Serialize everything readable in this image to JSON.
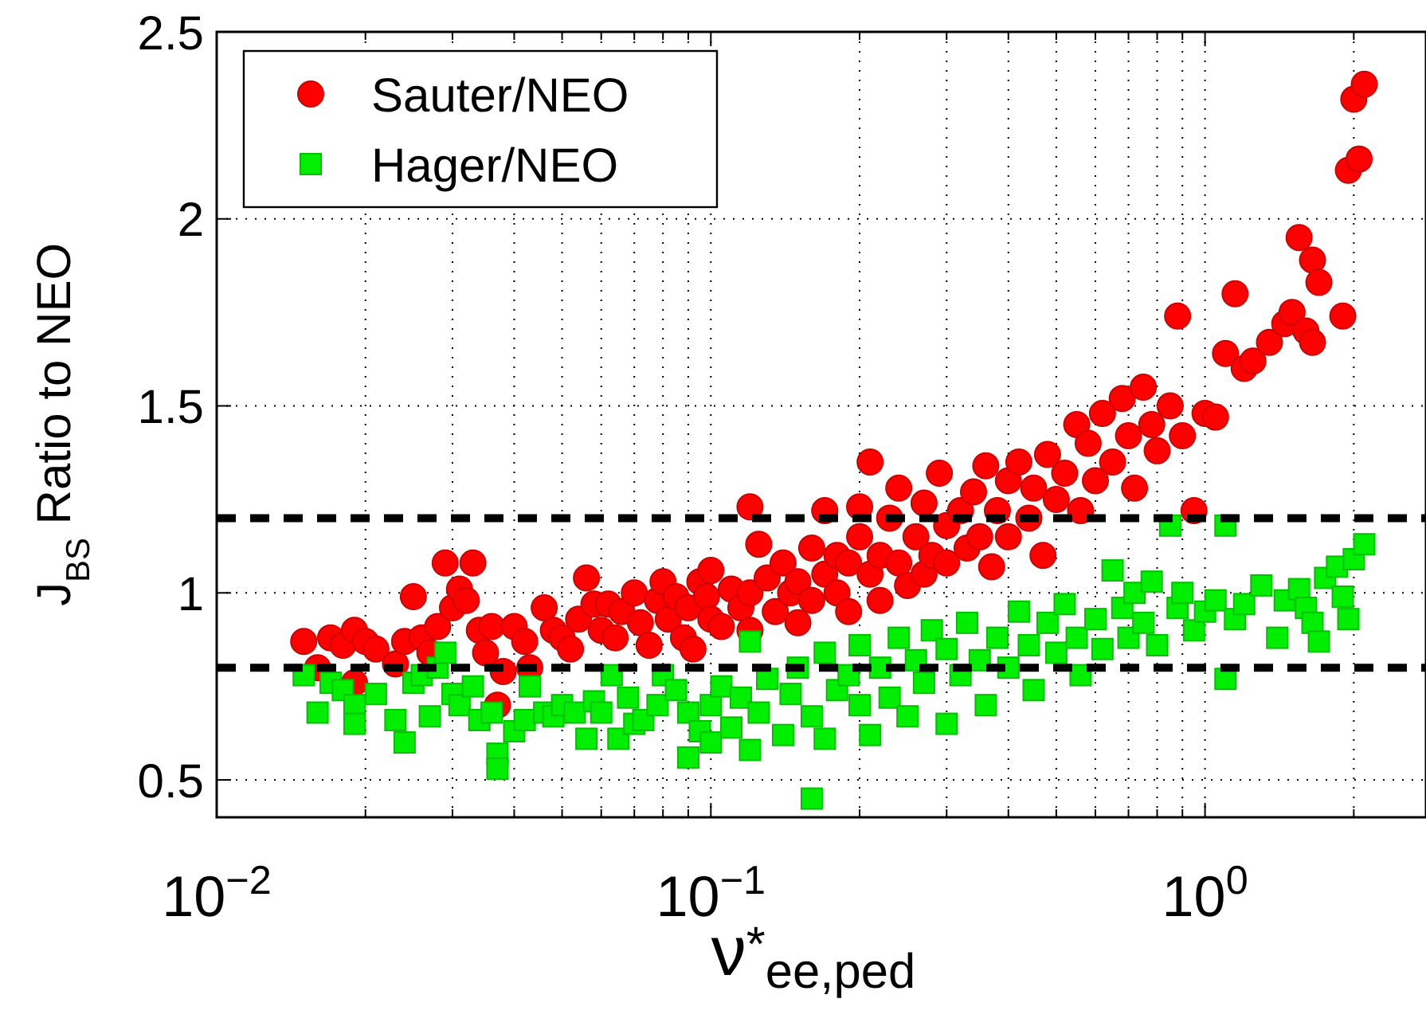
{
  "chart_data": {
    "type": "scatter",
    "xlabel": "ν$^{*}$$_{ee,ped}$",
    "ylabel": "J$_{BS}$ Ratio to NEO",
    "log": "x",
    "xlim": [
      0.01,
      2.8
    ],
    "ylim": [
      0.4,
      2.5
    ],
    "xticks": [
      {
        "value": 0.01,
        "label": "10$^{−2}$"
      },
      {
        "value": 0.02,
        "label": null
      },
      {
        "value": 0.03,
        "label": null
      },
      {
        "value": 0.04,
        "label": null
      },
      {
        "value": 0.05,
        "label": null
      },
      {
        "value": 0.06,
        "label": null
      },
      {
        "value": 0.07,
        "label": null
      },
      {
        "value": 0.08,
        "label": null
      },
      {
        "value": 0.09,
        "label": null
      },
      {
        "value": 0.1,
        "label": "10$^{−1}$"
      },
      {
        "value": 0.2,
        "label": null
      },
      {
        "value": 0.3,
        "label": null
      },
      {
        "value": 0.4,
        "label": null
      },
      {
        "value": 0.5,
        "label": null
      },
      {
        "value": 0.6,
        "label": null
      },
      {
        "value": 0.7,
        "label": null
      },
      {
        "value": 0.8,
        "label": null
      },
      {
        "value": 0.9,
        "label": null
      },
      {
        "value": 1,
        "label": "10$^{0}$"
      },
      {
        "value": 2,
        "label": null
      }
    ],
    "yticks": [
      0.5,
      1,
      1.5,
      2,
      2.5
    ],
    "grid": true,
    "legend": "top left",
    "ref_lines": [
      {
        "axis": "y",
        "value": 1.2,
        "color": "#000000",
        "line_style": "dashed"
      },
      {
        "axis": "y",
        "value": 0.8,
        "color": "#000000",
        "line_style": "dashed"
      }
    ],
    "series": [
      {
        "name": "Sauter/NEO",
        "color": "#ff0000",
        "marker": "circle",
        "x": [
          0.015,
          0.016,
          0.017,
          0.018,
          0.019,
          0.02,
          0.021,
          0.019,
          0.023,
          0.024,
          0.025,
          0.026,
          0.027,
          0.028,
          0.029,
          0.03,
          0.031,
          0.032,
          0.033,
          0.034,
          0.035,
          0.036,
          0.037,
          0.038,
          0.04,
          0.042,
          0.043,
          0.046,
          0.048,
          0.05,
          0.052,
          0.054,
          0.056,
          0.058,
          0.06,
          0.062,
          0.064,
          0.066,
          0.07,
          0.072,
          0.075,
          0.078,
          0.08,
          0.082,
          0.085,
          0.088,
          0.09,
          0.092,
          0.095,
          0.098,
          0.1,
          0.1,
          0.105,
          0.11,
          0.115,
          0.12,
          0.12,
          0.125,
          0.13,
          0.12,
          0.135,
          0.14,
          0.145,
          0.15,
          0.15,
          0.16,
          0.16,
          0.17,
          0.17,
          0.18,
          0.18,
          0.19,
          0.19,
          0.2,
          0.2,
          0.21,
          0.21,
          0.22,
          0.22,
          0.23,
          0.24,
          0.24,
          0.25,
          0.26,
          0.27,
          0.27,
          0.28,
          0.29,
          0.3,
          0.3,
          0.32,
          0.33,
          0.34,
          0.35,
          0.36,
          0.37,
          0.38,
          0.4,
          0.4,
          0.42,
          0.44,
          0.45,
          0.47,
          0.48,
          0.5,
          0.52,
          0.55,
          0.56,
          0.58,
          0.6,
          0.62,
          0.65,
          0.68,
          0.7,
          0.72,
          0.75,
          0.78,
          0.8,
          0.85,
          0.88,
          0.9,
          0.95,
          1,
          1.05,
          1.1,
          1.15,
          1.2,
          1.25,
          1.35,
          1.45,
          1.5,
          1.55,
          1.6,
          1.65,
          1.7,
          1.65,
          1.9,
          1.95,
          2.05,
          2,
          2.1
        ],
        "values": [
          0.87,
          0.8,
          0.88,
          0.86,
          0.9,
          0.87,
          0.85,
          0.76,
          0.81,
          0.87,
          0.99,
          0.88,
          0.84,
          0.91,
          1.08,
          0.96,
          1.01,
          0.98,
          1.08,
          0.9,
          0.84,
          0.91,
          0.7,
          0.79,
          0.91,
          0.87,
          0.8,
          0.96,
          0.9,
          0.88,
          0.85,
          0.93,
          1.04,
          0.97,
          0.9,
          0.97,
          0.88,
          0.95,
          1,
          0.92,
          0.86,
          0.98,
          1.03,
          0.93,
          0.99,
          0.88,
          0.96,
          0.85,
          1.03,
          0.99,
          0.93,
          1.06,
          0.91,
          1.01,
          0.96,
          1,
          0.9,
          1.13,
          1.04,
          1.23,
          0.95,
          1.08,
          1,
          1.03,
          0.92,
          1.12,
          0.98,
          1.05,
          1.22,
          1,
          1.1,
          1.08,
          0.95,
          1.23,
          1.15,
          1.05,
          1.35,
          1.1,
          0.98,
          1.2,
          1.08,
          1.28,
          1.02,
          1.15,
          1.24,
          1.05,
          1.1,
          1.32,
          1.18,
          1.08,
          1.22,
          1.12,
          1.27,
          1.15,
          1.34,
          1.07,
          1.22,
          1.3,
          1.15,
          1.35,
          1.2,
          1.28,
          1.1,
          1.37,
          1.25,
          1.32,
          1.45,
          1.22,
          1.4,
          1.3,
          1.48,
          1.35,
          1.52,
          1.42,
          1.28,
          1.55,
          1.45,
          1.38,
          1.5,
          1.74,
          1.42,
          1.22,
          1.48,
          1.47,
          1.64,
          1.8,
          1.6,
          1.62,
          1.67,
          1.72,
          1.75,
          1.95,
          1.7,
          1.89,
          1.83,
          1.67,
          1.74,
          2.13,
          2.16,
          2.32,
          2.36
        ]
      },
      {
        "name": "Hager/NEO",
        "color": "#00ee00",
        "marker": "square",
        "x": [
          0.015,
          0.016,
          0.017,
          0.018,
          0.019,
          0.019,
          0.021,
          0.023,
          0.024,
          0.025,
          0.026,
          0.027,
          0.028,
          0.029,
          0.03,
          0.031,
          0.033,
          0.034,
          0.036,
          0.037,
          0.037,
          0.04,
          0.042,
          0.043,
          0.046,
          0.048,
          0.05,
          0.053,
          0.056,
          0.058,
          0.06,
          0.063,
          0.065,
          0.068,
          0.07,
          0.073,
          0.078,
          0.08,
          0.085,
          0.09,
          0.09,
          0.095,
          0.1,
          0.1,
          0.105,
          0.11,
          0.115,
          0.12,
          0.12,
          0.125,
          0.13,
          0.14,
          0.145,
          0.15,
          0.16,
          0.16,
          0.17,
          0.17,
          0.18,
          0.19,
          0.2,
          0.2,
          0.21,
          0.22,
          0.23,
          0.24,
          0.25,
          0.26,
          0.27,
          0.28,
          0.3,
          0.3,
          0.32,
          0.33,
          0.35,
          0.36,
          0.38,
          0.4,
          0.42,
          0.44,
          0.45,
          0.48,
          0.5,
          0.52,
          0.55,
          0.56,
          0.6,
          0.62,
          0.65,
          0.68,
          0.7,
          0.72,
          0.75,
          0.78,
          0.8,
          0.85,
          0.88,
          0.9,
          0.95,
          1,
          1.05,
          1.1,
          1.1,
          1.15,
          1.2,
          1.3,
          1.4,
          1.45,
          1.55,
          1.6,
          1.65,
          1.7,
          1.75,
          1.95,
          1.9,
          1.85,
          2,
          2.1
        ],
        "values": [
          0.78,
          0.68,
          0.76,
          0.74,
          0.7,
          0.65,
          0.73,
          0.66,
          0.6,
          0.76,
          0.78,
          0.67,
          0.8,
          0.84,
          0.73,
          0.7,
          0.75,
          0.66,
          0.68,
          0.57,
          0.53,
          0.63,
          0.66,
          0.75,
          0.68,
          0.67,
          0.7,
          0.68,
          0.61,
          0.71,
          0.68,
          0.78,
          0.61,
          0.72,
          0.65,
          0.66,
          0.7,
          0.78,
          0.74,
          0.68,
          0.56,
          0.63,
          0.7,
          0.6,
          0.75,
          0.64,
          0.72,
          0.87,
          0.58,
          0.68,
          0.77,
          0.62,
          0.73,
          0.8,
          0.45,
          0.67,
          0.84,
          0.61,
          0.74,
          0.78,
          0.7,
          0.86,
          0.62,
          0.8,
          0.72,
          0.88,
          0.67,
          0.82,
          0.76,
          0.9,
          0.85,
          0.65,
          0.78,
          0.92,
          0.82,
          0.7,
          0.88,
          0.8,
          0.95,
          0.86,
          0.74,
          0.92,
          0.84,
          0.97,
          0.88,
          0.78,
          0.93,
          0.85,
          1.06,
          0.96,
          0.88,
          1,
          0.92,
          1.03,
          0.86,
          1.18,
          0.96,
          1,
          0.9,
          0.95,
          0.98,
          0.77,
          1.18,
          0.93,
          0.97,
          1.02,
          0.88,
          0.98,
          1.01,
          0.96,
          0.92,
          0.87,
          1.04,
          0.93,
          0.99,
          1.07,
          1.09,
          1.13
        ]
      }
    ]
  }
}
